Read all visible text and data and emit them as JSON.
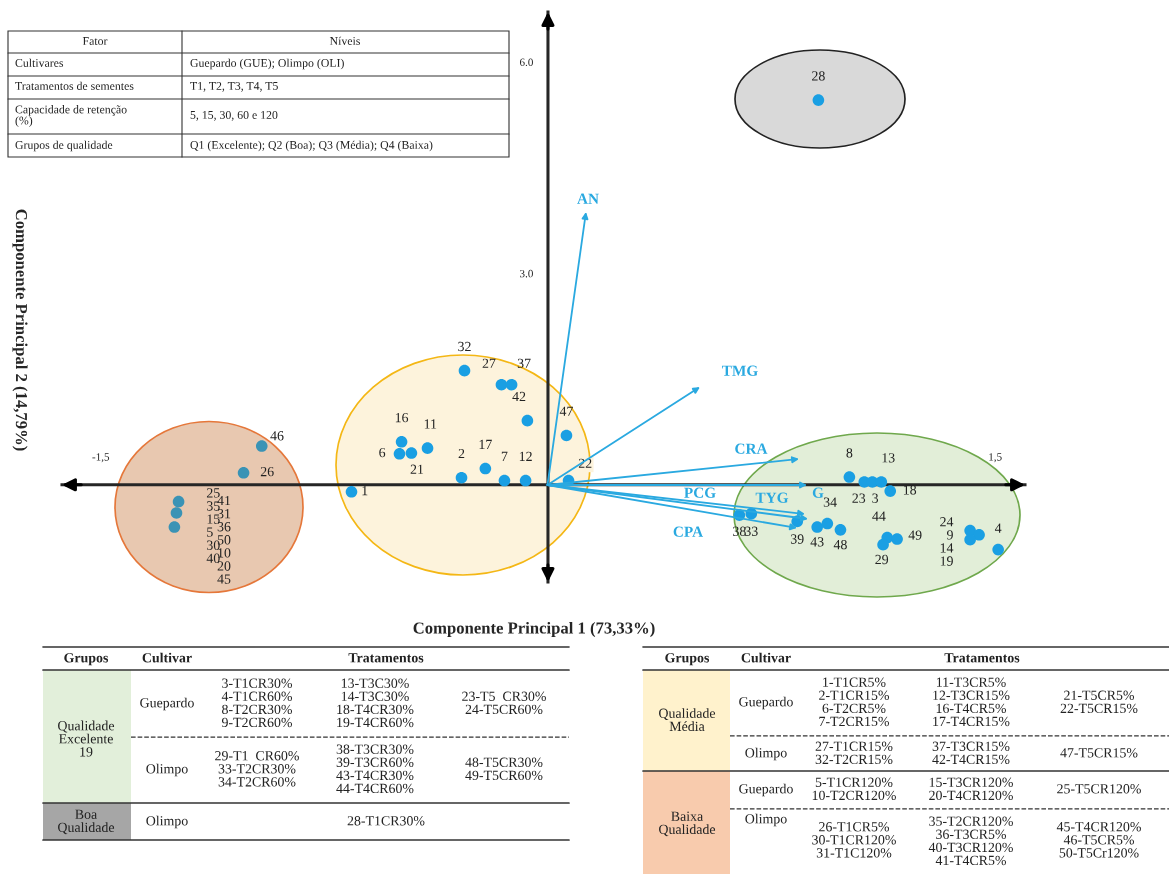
{
  "chart_data": {
    "type": "scatter",
    "xlabel": "Componente Principal 1 (73,33%)",
    "ylabel": "Componente Principal 2 (14,79%)",
    "xlim": [
      -1.63,
      1.6
    ],
    "ylim": [
      -1.38,
      6.71
    ],
    "xticks": [
      {
        "value": -1.5,
        "label": "-1,5"
      },
      {
        "value": 1.5,
        "label": "1,5"
      }
    ],
    "yticks": [
      {
        "value": 3,
        "label": "3.0"
      },
      {
        "value": 6,
        "label": "6.0"
      }
    ],
    "grid": false,
    "marker": "circle",
    "series": [
      {
        "x": [
          0.907,
          -0.28,
          -0.156,
          -0.122,
          -0.069,
          0.062,
          -0.491,
          -0.404,
          -0.498,
          -0.458,
          -0.29,
          -0.21,
          -0.146,
          -0.075,
          0.069,
          -0.659,
          -0.96,
          -1.021,
          -1.239,
          -1.246,
          -1.253,
          1.011,
          1.061,
          1.088,
          1.118,
          1.148,
          0.642,
          0.682,
          0.836,
          0.903,
          0.937,
          0.981,
          1.138,
          1.171,
          1.124,
          1.416,
          1.446,
          1.416,
          1.51
        ],
        "values": [
          5.46,
          1.62,
          1.42,
          1.42,
          0.91,
          0.7,
          0.61,
          0.52,
          0.44,
          0.45,
          0.1,
          0.23,
          0.06,
          0.06,
          0.06,
          -0.1,
          0.55,
          0.17,
          -0.24,
          -0.4,
          -0.6,
          0.11,
          0.04,
          0.04,
          0.04,
          -0.09,
          -0.43,
          -0.41,
          -0.52,
          -0.6,
          -0.55,
          -0.64,
          -0.75,
          -0.77,
          -0.85,
          -0.65,
          -0.71,
          -0.78,
          -0.92
        ],
        "colors": [
          "#1a9fe3",
          "#1a9fe3",
          "#1a9fe3",
          "#1a9fe3",
          "#1a9fe3",
          "#1a9fe3",
          "#1a9fe3",
          "#1a9fe3",
          "#1a9fe3",
          "#1a9fe3",
          "#1a9fe3",
          "#1a9fe3",
          "#1a9fe3",
          "#1a9fe3",
          "#1a9fe3",
          "#1a9fe3",
          "#3a93b5",
          "#3a93b5",
          "#3a93b5",
          "#3a93b5",
          "#3a93b5",
          "#1a9fe3",
          "#1a9fe3",
          "#1a9fe3",
          "#1a9fe3",
          "#1a9fe3",
          "#1a9fe3",
          "#1a9fe3",
          "#1a9fe3",
          "#1a9fe3",
          "#1a9fe3",
          "#1a9fe3",
          "#1a9fe3",
          "#1a9fe3",
          "#1a9fe3",
          "#1a9fe3",
          "#1a9fe3",
          "#1a9fe3",
          "#1a9fe3"
        ]
      }
    ],
    "annotations": [
      {
        "text": "28",
        "x": 0.907,
        "y": 5.46
      },
      {
        "text": "32",
        "x": -0.28,
        "y": 1.62
      },
      {
        "text": "27",
        "x": -0.156,
        "y": 1.42
      },
      {
        "text": "37",
        "x": -0.122,
        "y": 1.42
      },
      {
        "text": "42",
        "x": -0.069,
        "y": 0.91
      },
      {
        "text": "47",
        "x": 0.062,
        "y": 0.7
      },
      {
        "text": "16",
        "x": -0.491,
        "y": 0.61
      },
      {
        "text": "11",
        "x": -0.404,
        "y": 0.52
      },
      {
        "text": "6",
        "x": -0.498,
        "y": 0.44
      },
      {
        "text": "21",
        "x": -0.458,
        "y": 0.45
      },
      {
        "text": "2",
        "x": -0.29,
        "y": 0.1
      },
      {
        "text": "17",
        "x": -0.21,
        "y": 0.23
      },
      {
        "text": "7",
        "x": -0.146,
        "y": 0.06
      },
      {
        "text": "12",
        "x": -0.075,
        "y": 0.06
      },
      {
        "text": "22",
        "x": 0.069,
        "y": 0.06
      },
      {
        "text": "1",
        "x": -0.659,
        "y": -0.1
      },
      {
        "text": "46",
        "x": -0.96,
        "y": 0.55
      },
      {
        "text": "26",
        "x": -1.021,
        "y": 0.17
      },
      {
        "text": "25\n35\n15\n5\n30\n40",
        "x": -1.239,
        "y": -0.24
      },
      {
        "text": "8",
        "x": 1.011,
        "y": 0.11
      },
      {
        "text": "23",
        "x": 1.061,
        "y": 0.04
      },
      {
        "text": "3",
        "x": 1.088,
        "y": 0.04
      },
      {
        "text": "13",
        "x": 1.118,
        "y": 0.04
      },
      {
        "text": "18",
        "x": 1.148,
        "y": -0.09
      },
      {
        "text": "38",
        "x": 0.642,
        "y": -0.43
      },
      {
        "text": "33",
        "x": 0.682,
        "y": -0.41
      },
      {
        "text": "39",
        "x": 0.836,
        "y": -0.52
      },
      {
        "text": "43",
        "x": 0.903,
        "y": -0.6
      },
      {
        "text": "34",
        "x": 0.937,
        "y": -0.55
      },
      {
        "text": "48",
        "x": 0.981,
        "y": -0.64
      },
      {
        "text": "44",
        "x": 1.138,
        "y": -0.75
      },
      {
        "text": "49",
        "x": 1.171,
        "y": -0.77
      },
      {
        "text": "29",
        "x": 1.124,
        "y": -0.85
      },
      {
        "text": "24\n9\n14\n19",
        "x": 1.416,
        "y": -0.65
      },
      {
        "text": "4",
        "x": 1.51,
        "y": -0.92
      },
      "41\n31\n36\n50\n10\n20\n45",
      "AN",
      "TMG",
      "CRA",
      "G",
      "PCG",
      "TYG",
      "CPA",
      "Fator",
      "Níveis",
      "Cultivares",
      "Guepardo (GUE); Olimpo (OLI)",
      "Tratamentos de sementes",
      "T1, T2, T3, T4, T5",
      "Capacidade de retenção\n(%)",
      "5, 15, 30, 60 e 120",
      "Grupos de qualidade",
      "Q1 (Excelente); Q2 (Boa); Q3 (Média); Q4 (Baixa)",
      "Grupos",
      "Cultivar",
      "Tratamentos",
      "Qualidade\nExcelente\n19",
      "Guepardo",
      "3-T1CR30%\n4-T1CR60%\n8-T2CR30%\n9-T2CR60%",
      "13-T3C30%\n14-T3C30%\n18-T4CR30%\n19-T4CR60%",
      "23-T5  CR30%\n24-T5CR60%",
      "Olimpo",
      "29-T1  CR60%\n33-T2CR30%\n34-T2CR60%",
      "38-T3CR30%\n39-T3CR60%\n43-T4CR30%\n44-T4CR60%",
      "48-T5CR30%\n49-T5CR60%",
      "Boa\nQualidade",
      "Olimpo",
      "28-T1CR30%",
      "Grupos",
      "Cultivar",
      "Tratamentos",
      "Qualidade\nMédia",
      "Guepardo",
      "1-T1CR5%\n2-T1CR15%\n6-T2CR5%\n7-T2CR15%",
      "11-T3CR5%\n12-T3CR15%\n16-T4CR5%\n17-T4CR15%",
      "21-T5CR5%\n22-T5CR15%",
      "Olimpo",
      "27-T1CR15%\n32-T2CR15%",
      "37-T3CR15%\n42-T4CR15%",
      "47-T5CR15%",
      "Baixa\nQualidade",
      "Guepardo",
      "5-T1CR120%\n10-T2CR120%",
      "15-T3CR120%\n20-T4CR120%",
      "25-T5CR120%",
      "Olimpo",
      "26-T1CR5%\n30-T1CR120%\n31-T1C120%",
      "35-T2CR120%\n36-T3CR5%\n40-T3CR120%\n41-T4CR5%",
      "45-T4CR120%\n46-T5CR5%\n50-T5Cr120%"
    ]
  }
}
